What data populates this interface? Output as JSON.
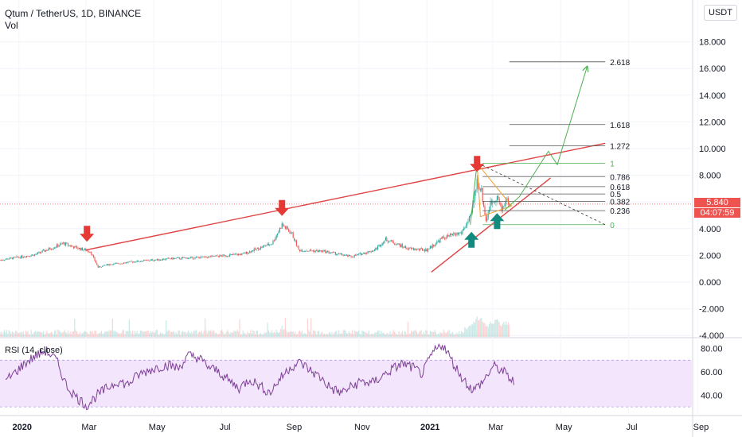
{
  "header": {
    "symbol_line": "Qtum / TetherUS, 1D, BINANCE",
    "vol_label": "Vol",
    "rsi_label": "RSI (14, close)",
    "currency": "USDT"
  },
  "price_tag": {
    "price": "5.840",
    "countdown": "04:07:59"
  },
  "colors": {
    "candle_up": "#26a69a",
    "candle_down": "#ef5350",
    "trendline": "#e04444",
    "fib_up": "#4caf50",
    "fib_orange": "#f0a030",
    "rsi_line": "#7e3f98",
    "rsi_band": "#f3e5fb",
    "arrow_down": "#e53935",
    "arrow_up": "#138a7e"
  },
  "chart_data": [
    {
      "type": "candlestick",
      "title": "Qtum / TetherUS, 1D, BINANCE",
      "x_tick_labels": [
        "2020",
        "Mar",
        "May",
        "Jul",
        "Sep",
        "Nov",
        "2021",
        "Mar",
        "May",
        "Jul",
        "Sep"
      ],
      "y_tick_labels": [
        "-4.000",
        "-2.000",
        "0.000",
        "2.000",
        "4.000",
        "6.000",
        "8.000",
        "10.000",
        "12.000",
        "14.000",
        "16.000",
        "18.000"
      ],
      "ylim": [
        -4,
        20
      ],
      "last_price": 5.84,
      "price_path": [
        [
          "2019-12-15",
          1.65
        ],
        [
          "2020-01-15",
          2.05
        ],
        [
          "2020-02-10",
          2.9
        ],
        [
          "2020-02-20",
          2.6
        ],
        [
          "2020-03-05",
          2.3
        ],
        [
          "2020-03-12",
          1.1
        ],
        [
          "2020-03-20",
          1.3
        ],
        [
          "2020-04-15",
          1.55
        ],
        [
          "2020-05-15",
          1.75
        ],
        [
          "2020-06-15",
          1.85
        ],
        [
          "2020-07-20",
          2.1
        ],
        [
          "2020-08-15",
          2.9
        ],
        [
          "2020-08-24",
          4.3
        ],
        [
          "2020-09-02",
          3.6
        ],
        [
          "2020-09-08",
          2.4
        ],
        [
          "2020-10-01",
          2.3
        ],
        [
          "2020-10-25",
          1.9
        ],
        [
          "2020-11-15",
          2.4
        ],
        [
          "2020-11-25",
          3.2
        ],
        [
          "2020-12-15",
          2.5
        ],
        [
          "2021-01-01",
          2.4
        ],
        [
          "2021-01-15",
          3.3
        ],
        [
          "2021-02-01",
          3.7
        ],
        [
          "2021-02-10",
          5.0
        ],
        [
          "2021-02-15",
          7.6
        ],
        [
          "2021-02-19",
          6.8
        ],
        [
          "2021-02-23",
          4.6
        ],
        [
          "2021-02-27",
          5.9
        ],
        [
          "2021-03-05",
          6.4
        ],
        [
          "2021-03-09",
          5.4
        ],
        [
          "2021-03-13",
          6.2
        ],
        [
          "2021-03-16",
          5.84
        ]
      ],
      "fibonacci_levels": [
        {
          "label": "2.618",
          "price": 16.5
        },
        {
          "label": "1.618",
          "price": 11.8
        },
        {
          "label": "1.272",
          "price": 10.2
        },
        {
          "label": "1",
          "price": 8.9
        },
        {
          "label": "0.786",
          "price": 7.9
        },
        {
          "label": "0.618",
          "price": 7.15
        },
        {
          "label": "0.5",
          "price": 6.6
        },
        {
          "label": "0.382",
          "price": 6.05
        },
        {
          "label": "0.236",
          "price": 5.35
        },
        {
          "label": "0",
          "price": 4.3
        }
      ],
      "annotations": {
        "resistance_line": [
          [
            "2020-03-01",
            2.4
          ],
          [
            "2021-06-10",
            10.4
          ]
        ],
        "support_line": [
          [
            "2021-01-05",
            0.75
          ],
          [
            "2021-04-22",
            7.8
          ]
        ],
        "projection_path": [
          [
            "2021-03-25",
            6.4
          ],
          [
            "2021-04-20",
            9.8
          ],
          [
            "2021-04-28",
            8.8
          ],
          [
            "2021-05-25",
            16.2
          ]
        ],
        "down_arrows": [
          "2020-03-02",
          "2020-08-24",
          "2021-02-15"
        ],
        "up_arrows": [
          "2021-02-10",
          "2021-03-05"
        ]
      }
    },
    {
      "type": "line",
      "title": "RSI (14, close)",
      "y_tick_labels": [
        "40.00",
        "60.00",
        "80.00"
      ],
      "ylim": [
        30,
        85
      ],
      "band": [
        30,
        70
      ],
      "values": [
        52,
        60,
        68,
        74,
        78,
        70,
        48,
        38,
        31,
        40,
        46,
        52,
        49,
        57,
        61,
        64,
        66,
        63,
        74,
        72,
        64,
        60,
        52,
        46,
        54,
        48,
        42,
        54,
        64,
        68,
        61,
        55,
        46,
        42,
        47,
        52,
        50,
        56,
        62,
        67,
        64,
        58,
        76,
        84,
        68,
        54,
        44,
        52,
        65,
        60,
        51
      ]
    }
  ]
}
